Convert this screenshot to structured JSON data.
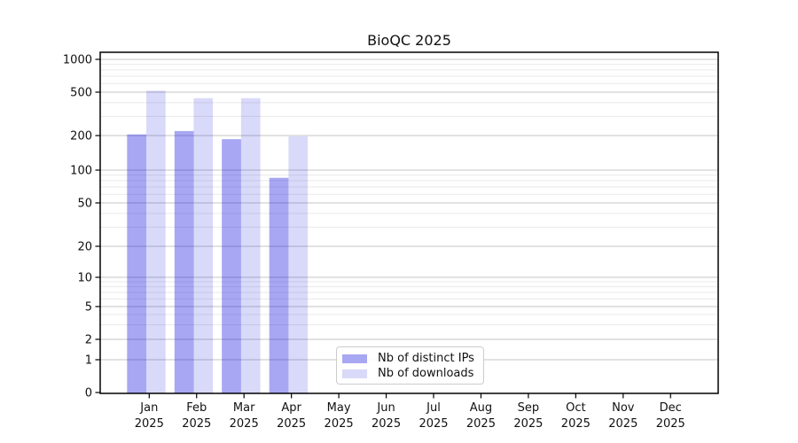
{
  "chart_data": {
    "type": "bar",
    "title": "BioQC 2025",
    "year_label": "2025",
    "months": [
      "Jan",
      "Feb",
      "Mar",
      "Apr",
      "May",
      "Jun",
      "Jul",
      "Aug",
      "Sep",
      "Oct",
      "Nov",
      "Dec"
    ],
    "series": [
      {
        "name": "Nb of distinct IPs",
        "color": "#a7a7f2",
        "bar_fill": "rgba(0,0,220,0.345)",
        "values": [
          205,
          220,
          186,
          85,
          null,
          null,
          null,
          null,
          null,
          null,
          null,
          null
        ]
      },
      {
        "name": "Nb of downloads",
        "color": "#d9d9f8",
        "bar_fill": "rgba(0,0,215,0.15)",
        "values": [
          515,
          440,
          440,
          197,
          null,
          null,
          null,
          null,
          null,
          null,
          null,
          null
        ]
      }
    ],
    "y_ticks": [
      1000,
      500,
      200,
      100,
      50,
      20,
      10,
      5,
      2,
      1,
      0
    ],
    "y_scale": "log (1-2-5 ticks, linear below 1)",
    "ylim": [
      0,
      1000
    ],
    "grid": "on (major + minor horizontal gridlines)",
    "legend_position": "inside lower-center-left",
    "colors": {
      "grid_major": "#c6c6c6",
      "grid_minor": "#eaeaea",
      "spine": "#000000",
      "text": "#111111",
      "background": "#ffffff"
    }
  }
}
